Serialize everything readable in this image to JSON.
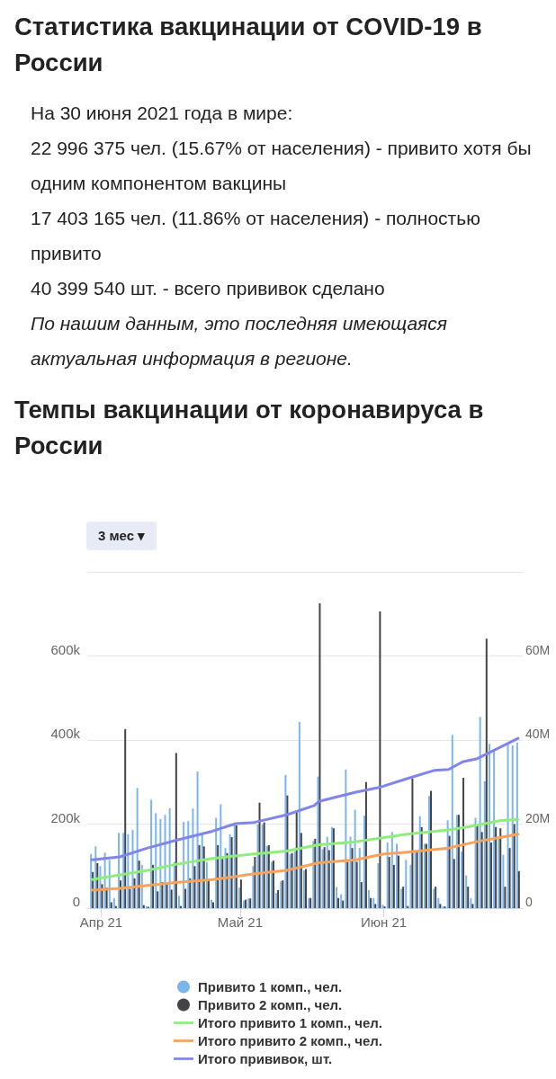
{
  "chart_data": {
    "type": "bar",
    "title": "Статистика вакцинации от COVID-19 в России",
    "subtitle": "Темпы вакцинации от коронавируса в России",
    "annotations": [
      "На 30 июня 2021 года в мире:",
      "22 996 375 чел. (15.67% от населения) - привито хотя бы одним компонентом вакцины",
      "17 403 165 чел. (11.86% от населения) - полностью привито",
      "40 399 540 шт. - всего прививок сделано",
      "По нашим данным, это последняя имеющаяся актуальная информация в регионе.",
      "3 мес ▾"
    ],
    "x": [
      "2021-03-30",
      "2021-03-31",
      "2021-04-01",
      "2021-04-02",
      "2021-04-03",
      "2021-04-04",
      "2021-04-05",
      "2021-04-06",
      "2021-04-07",
      "2021-04-08",
      "2021-04-09",
      "2021-04-10",
      "2021-04-11",
      "2021-04-12",
      "2021-04-13",
      "2021-04-14",
      "2021-04-15",
      "2021-04-16",
      "2021-04-17",
      "2021-04-18",
      "2021-04-19",
      "2021-04-20",
      "2021-04-21",
      "2021-04-22",
      "2021-04-23",
      "2021-04-24",
      "2021-04-25",
      "2021-04-26",
      "2021-04-27",
      "2021-04-28",
      "2021-04-29",
      "2021-04-30",
      "2021-05-01",
      "2021-05-02",
      "2021-05-03",
      "2021-05-04",
      "2021-05-05",
      "2021-05-06",
      "2021-05-07",
      "2021-05-08",
      "2021-05-09",
      "2021-05-10",
      "2021-05-11",
      "2021-05-12",
      "2021-05-13",
      "2021-05-14",
      "2021-05-15",
      "2021-05-16",
      "2021-05-17",
      "2021-05-18",
      "2021-05-19",
      "2021-05-20",
      "2021-05-21",
      "2021-05-22",
      "2021-05-23",
      "2021-05-24",
      "2021-05-25",
      "2021-05-26",
      "2021-05-27",
      "2021-05-28",
      "2021-05-29",
      "2021-05-30",
      "2021-05-31",
      "2021-06-01",
      "2021-06-02",
      "2021-06-03",
      "2021-06-04",
      "2021-06-05",
      "2021-06-06",
      "2021-06-07",
      "2021-06-08",
      "2021-06-09",
      "2021-06-10",
      "2021-06-11",
      "2021-06-12",
      "2021-06-13",
      "2021-06-14",
      "2021-06-15",
      "2021-06-16",
      "2021-06-17",
      "2021-06-18",
      "2021-06-19",
      "2021-06-20",
      "2021-06-21",
      "2021-06-22",
      "2021-06-23",
      "2021-06-24",
      "2021-06-25",
      "2021-06-26",
      "2021-06-27",
      "2021-06-28",
      "2021-06-29",
      "2021-06-30"
    ],
    "series": [
      {
        "name": "Привито 1 комп., чел.",
        "color": "#7cb5ec",
        "values": [
          129000,
          147000,
          100000,
          132000,
          115000,
          24000,
          179000,
          179000,
          176000,
          186000,
          286000,
          103000,
          5000,
          258000,
          226000,
          212000,
          222000,
          238000,
          110000,
          29000,
          205000,
          207000,
          237000,
          325000,
          179000,
          110000,
          20000,
          215000,
          247000,
          143000,
          176000,
          197000,
          49000,
          18000,
          23000,
          100000,
          199000,
          199000,
          148000,
          110000,
          36000,
          64000,
          317000,
          128000,
          135000,
          443000,
          90000,
          24000,
          160000,
          313000,
          140000,
          170000,
          193000,
          50000,
          33000,
          330000,
          170000,
          234000,
          143000,
          220000,
          43000,
          24000,
          107000,
          8000,
          156000,
          181000,
          153000,
          46000,
          115000,
          103000,
          133000,
          219000,
          153000,
          267000,
          46000,
          24000,
          5000,
          209000,
          412000,
          222000,
          135000,
          78000,
          24000,
          215000,
          455000,
          302000,
          391000,
          375000,
          170000,
          127000,
          391000,
          387000,
          394000
        ]
      },
      {
        "name": "Привито 2 комп., чел.",
        "color": "#434348",
        "values": [
          86000,
          107000,
          57000,
          49000,
          14000,
          5000,
          66000,
          426000,
          46000,
          71000,
          113000,
          7000,
          3000,
          103000,
          40000,
          62000,
          57000,
          44000,
          369000,
          5000,
          46000,
          71000,
          100000,
          150000,
          147000,
          69000,
          14000,
          150000,
          117000,
          131000,
          169000,
          197000,
          68000,
          20000,
          23000,
          122000,
          251000,
          204000,
          150000,
          113000,
          43000,
          66000,
          268000,
          131000,
          228000,
          179000,
          93000,
          24000,
          165000,
          725000,
          145000,
          138000,
          190000,
          24000,
          18000,
          110000,
          143000,
          110000,
          62000,
          300000,
          24000,
          10000,
          706000,
          4000,
          122000,
          103000,
          125000,
          51000,
          5000,
          308000,
          133000,
          193000,
          153000,
          279000,
          51000,
          10000,
          4000,
          172000,
          117000,
          222000,
          310000,
          51000,
          10000,
          197000,
          181000,
          641000,
          156000,
          193000,
          190000,
          51000,
          143000,
          200000,
          88000
        ]
      },
      {
        "name": "Итого привито 1 комп., чел.",
        "type": "line",
        "axis": "y2",
        "color": "#90ed7d",
        "x": [
          "2021-03-30",
          "2021-04-05",
          "2021-04-11",
          "2021-04-17",
          "2021-04-25",
          "2021-04-28",
          "2021-05-04",
          "2021-05-11",
          "2021-05-18",
          "2021-05-26",
          "2021-06-01",
          "2021-06-06",
          "2021-06-15",
          "2021-06-21",
          "2021-06-26",
          "2021-06-30"
        ],
        "values": [
          6800000,
          7900000,
          9000000,
          10400000,
          11800000,
          12200000,
          12900000,
          13600000,
          15100000,
          15800000,
          16800000,
          17600000,
          18600000,
          19700000,
          20800000,
          21100000
        ]
      },
      {
        "name": "Итого привито 2 комп., чел.",
        "type": "line",
        "axis": "y2",
        "color": "#f7a35c",
        "x": [
          "2021-03-30",
          "2021-04-05",
          "2021-04-11",
          "2021-04-17",
          "2021-04-25",
          "2021-04-28",
          "2021-05-04",
          "2021-05-11",
          "2021-05-18",
          "2021-05-26",
          "2021-06-01",
          "2021-06-06",
          "2021-06-15",
          "2021-06-21",
          "2021-06-26",
          "2021-06-30"
        ],
        "values": [
          4300000,
          4700000,
          5400000,
          6100000,
          6800000,
          7200000,
          8200000,
          9000000,
          10800000,
          11500000,
          12900000,
          13300000,
          14300000,
          15800000,
          16800000,
          17600000
        ]
      },
      {
        "name": "Итого прививок, шт.",
        "type": "line",
        "axis": "y2",
        "color": "#8085e9",
        "x": [
          "2021-03-30",
          "2021-04-05",
          "2021-04-11",
          "2021-04-17",
          "2021-04-25",
          "2021-04-30",
          "2021-05-04",
          "2021-05-11",
          "2021-05-17",
          "2021-05-18",
          "2021-05-26",
          "2021-05-31",
          "2021-06-06",
          "2021-06-12",
          "2021-06-15",
          "2021-06-18",
          "2021-06-21",
          "2021-06-26",
          "2021-06-30"
        ],
        "values": [
          11500000,
          12200000,
          14300000,
          16100000,
          18300000,
          20100000,
          20400000,
          22200000,
          24400000,
          25400000,
          27600000,
          28700000,
          30800000,
          32800000,
          33000000,
          34800000,
          35500000,
          38200000,
          40400000
        ]
      }
    ],
    "xlim": [
      "2021-03-29",
      "2021-07-01"
    ],
    "xticks": [
      {
        "value": "2021-04-01",
        "label": "Апр 21"
      },
      {
        "value": "2021-05-01",
        "label": "Май 21"
      },
      {
        "value": "2021-06-01",
        "label": "Июн 21"
      }
    ],
    "ylim": [
      0,
      800000
    ],
    "yticks": [
      0,
      {
        "value": 200000,
        "label": "200k"
      },
      {
        "value": 400000,
        "label": "400k"
      },
      {
        "value": 600000,
        "label": "600k"
      },
      {
        "value": 800000,
        "label": null
      }
    ],
    "y2lim": [
      0,
      80000000
    ],
    "y2ticks": [
      0,
      {
        "value": 20000000,
        "label": "20M"
      },
      {
        "value": 40000000,
        "label": "40M"
      },
      {
        "value": 60000000,
        "label": "60M"
      }
    ],
    "grid": "y",
    "legend": "bottom",
    "marker": "none",
    "line_style": "solid"
  }
}
